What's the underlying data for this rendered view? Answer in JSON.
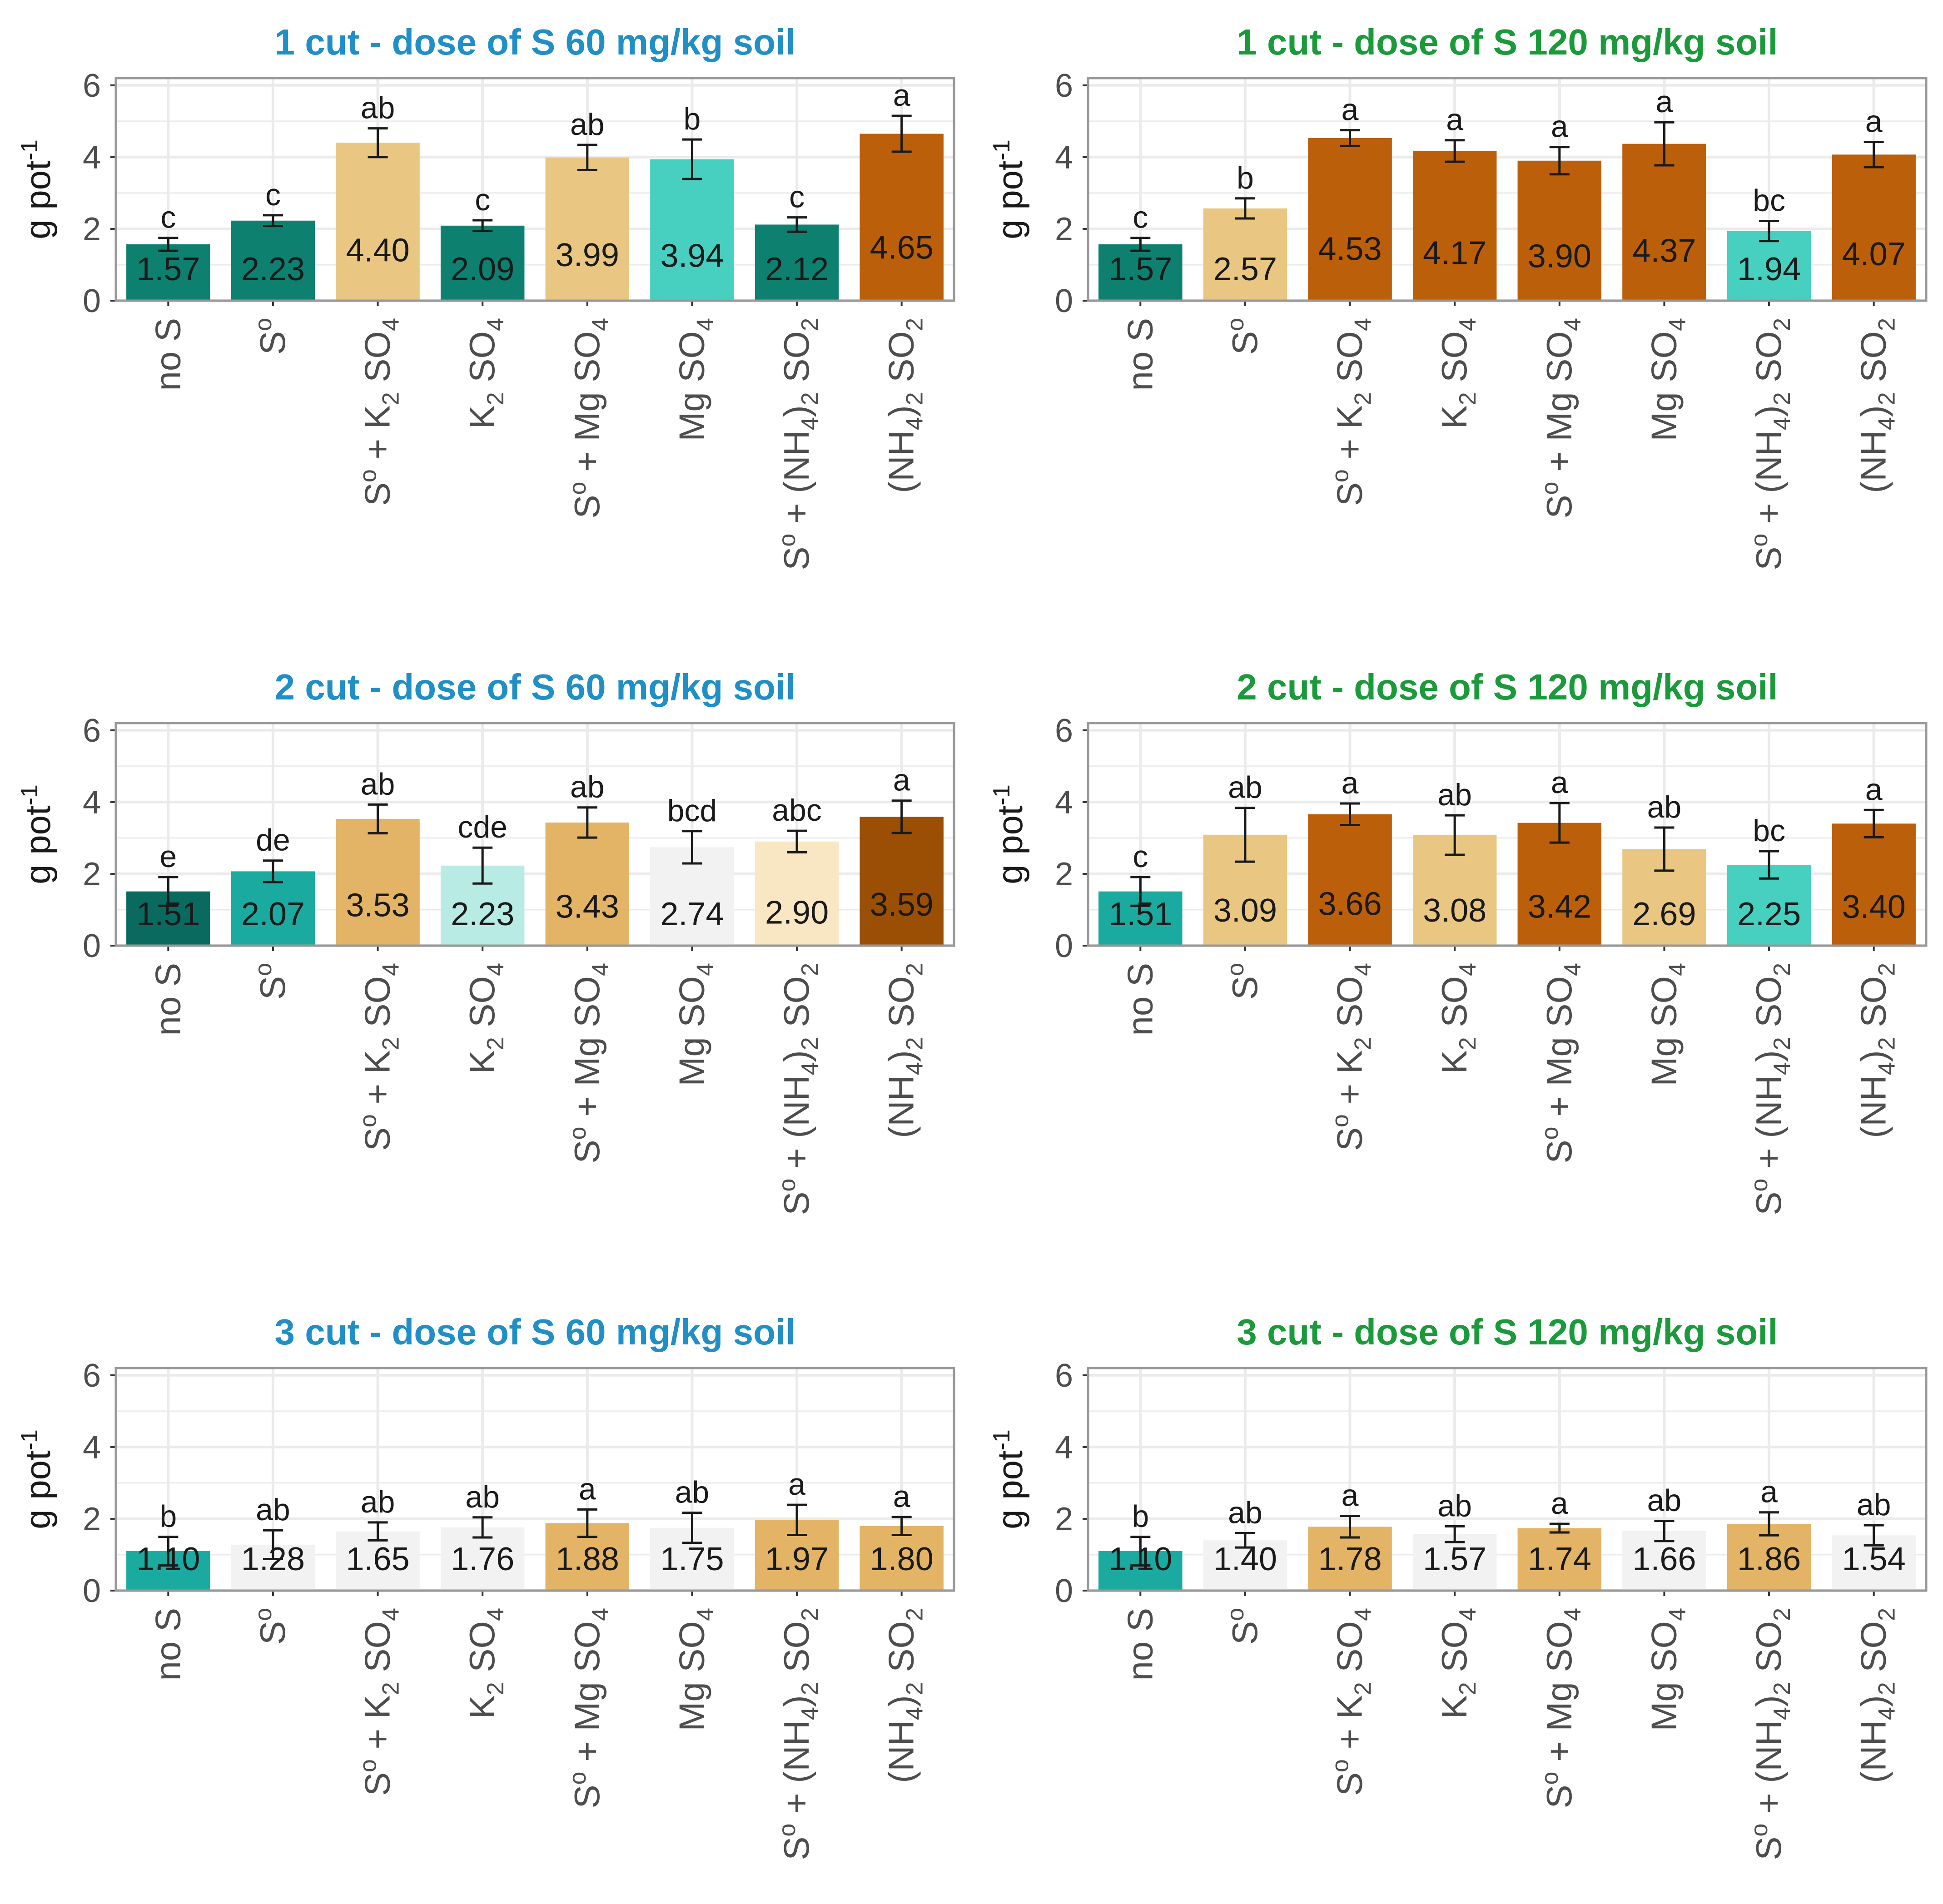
{
  "x_categories": [
    {
      "main": "no S"
    },
    {
      "main": "S",
      "sup": "o"
    },
    {
      "main": "S",
      "sup": "o",
      "rest": " + K",
      "sub": "2",
      "tail": " SO",
      "sub2": "4"
    },
    {
      "main": "K",
      "sub": "2",
      "tail": " SO",
      "sub2": "4"
    },
    {
      "main": "S",
      "sup": "o",
      "rest": " + Mg SO",
      "sub": "4"
    },
    {
      "main": "Mg SO",
      "sub": "4"
    },
    {
      "main": "S",
      "sup": "o",
      "rest": " + (NH",
      "sub": "4",
      "tail": ")",
      "sub2": "2",
      "tail2": " SO",
      "sub3": "2"
    },
    {
      "main": "(NH",
      "sub": "4",
      "tail": ")",
      "sub2": "2",
      "tail2": " SO",
      "sub3": "2"
    }
  ],
  "y_axis": {
    "label": "g pot",
    "label_sup": "-1",
    "ticks": [
      "0",
      "2",
      "4",
      "6"
    ],
    "ylim": [
      0,
      6.2
    ]
  },
  "colors": {
    "title_60": "#1f8fc6",
    "title_120": "#1a9a3a",
    "grid": "#ebebeb",
    "panel_border": "#999999"
  },
  "chart_data": [
    {
      "type": "bar",
      "title": "1 cut - dose of S 60 mg/kg soil",
      "title_color": "#1f8fc6",
      "values": [
        1.57,
        2.23,
        4.4,
        2.09,
        3.99,
        3.94,
        2.12,
        4.65
      ],
      "labels": [
        "1.57",
        "2.23",
        "4.40",
        "2.09",
        "3.99",
        "3.94",
        "2.12",
        "4.65"
      ],
      "errors": [
        0.18,
        0.15,
        0.4,
        0.15,
        0.35,
        0.55,
        0.2,
        0.5
      ],
      "letters": [
        "c",
        "c",
        "ab",
        "c",
        "ab",
        "b",
        "c",
        "a"
      ],
      "colors": [
        "#0d8070",
        "#0d8070",
        "#e9c783",
        "#0d8070",
        "#e9c783",
        "#47cfc0",
        "#0d8070",
        "#bb5f0a"
      ]
    },
    {
      "type": "bar",
      "title": "1 cut - dose of S 120 mg/kg soil",
      "title_color": "#1a9a3a",
      "values": [
        1.57,
        2.57,
        4.53,
        4.17,
        3.9,
        4.37,
        1.94,
        4.07
      ],
      "labels": [
        "1.57",
        "2.57",
        "4.53",
        "4.17",
        "3.90",
        "4.37",
        "1.94",
        "4.07"
      ],
      "errors": [
        0.18,
        0.28,
        0.22,
        0.3,
        0.38,
        0.6,
        0.28,
        0.35
      ],
      "letters": [
        "c",
        "b",
        "a",
        "a",
        "a",
        "a",
        "bc",
        "a"
      ],
      "colors": [
        "#0d8070",
        "#e9c783",
        "#bb5f0a",
        "#bb5f0a",
        "#bb5f0a",
        "#bb5f0a",
        "#47cfc0",
        "#bb5f0a"
      ]
    },
    {
      "type": "bar",
      "title": "2 cut - dose of S 60 mg/kg soil",
      "title_color": "#1f8fc6",
      "values": [
        1.51,
        2.07,
        3.53,
        2.23,
        3.43,
        2.74,
        2.9,
        3.59
      ],
      "labels": [
        "1.51",
        "2.07",
        "3.53",
        "2.23",
        "3.43",
        "2.74",
        "2.90",
        "3.59"
      ],
      "errors": [
        0.4,
        0.3,
        0.4,
        0.5,
        0.42,
        0.45,
        0.3,
        0.45
      ],
      "letters": [
        "e",
        "de",
        "ab",
        "cde",
        "ab",
        "bcd",
        "abc",
        "a"
      ],
      "colors": [
        "#0a6a5f",
        "#1aaaa0",
        "#e3b465",
        "#b8ebe4",
        "#e3b465",
        "#f2f2f2",
        "#f9e6c3",
        "#9a4f05"
      ]
    },
    {
      "type": "bar",
      "title": "2 cut - dose of S 120 mg/kg soil",
      "title_color": "#1a9a3a",
      "values": [
        1.51,
        3.09,
        3.66,
        3.08,
        3.42,
        2.69,
        2.25,
        3.4
      ],
      "labels": [
        "1.51",
        "3.09",
        "3.66",
        "3.08",
        "3.42",
        "2.69",
        "2.25",
        "3.40"
      ],
      "errors": [
        0.4,
        0.75,
        0.3,
        0.55,
        0.55,
        0.6,
        0.38,
        0.38
      ],
      "letters": [
        "c",
        "ab",
        "a",
        "ab",
        "a",
        "ab",
        "bc",
        "a"
      ],
      "colors": [
        "#1aaaa0",
        "#e9c783",
        "#bb5f0a",
        "#e9c783",
        "#bb5f0a",
        "#e9c783",
        "#47cfc0",
        "#bb5f0a"
      ]
    },
    {
      "type": "bar",
      "title": "3 cut - dose of S 60 mg/kg soil",
      "title_color": "#1f8fc6",
      "values": [
        1.1,
        1.28,
        1.65,
        1.76,
        1.88,
        1.75,
        1.97,
        1.8
      ],
      "labels": [
        "1.10",
        "1.28",
        "1.65",
        "1.76",
        "1.88",
        "1.75",
        "1.97",
        "1.80"
      ],
      "errors": [
        0.4,
        0.4,
        0.25,
        0.28,
        0.38,
        0.42,
        0.42,
        0.25
      ],
      "letters": [
        "b",
        "ab",
        "ab",
        "ab",
        "a",
        "ab",
        "a",
        "a"
      ],
      "colors": [
        "#1aaaa0",
        "#f2f2f2",
        "#f2f2f2",
        "#f2f2f2",
        "#e3b465",
        "#f2f2f2",
        "#e3b465",
        "#e3b465"
      ]
    },
    {
      "type": "bar",
      "title": "3 cut - dose of S 120 mg/kg soil",
      "title_color": "#1a9a3a",
      "values": [
        1.1,
        1.4,
        1.78,
        1.57,
        1.74,
        1.66,
        1.86,
        1.54
      ],
      "labels": [
        "1.10",
        "1.40",
        "1.78",
        "1.57",
        "1.74",
        "1.66",
        "1.86",
        "1.54"
      ],
      "errors": [
        0.4,
        0.2,
        0.3,
        0.22,
        0.12,
        0.28,
        0.32,
        0.28
      ],
      "letters": [
        "b",
        "ab",
        "a",
        "ab",
        "a",
        "ab",
        "a",
        "ab"
      ],
      "colors": [
        "#1aaaa0",
        "#f2f2f2",
        "#e3b465",
        "#f2f2f2",
        "#e3b465",
        "#f2f2f2",
        "#e3b465",
        "#f2f2f2"
      ]
    }
  ]
}
